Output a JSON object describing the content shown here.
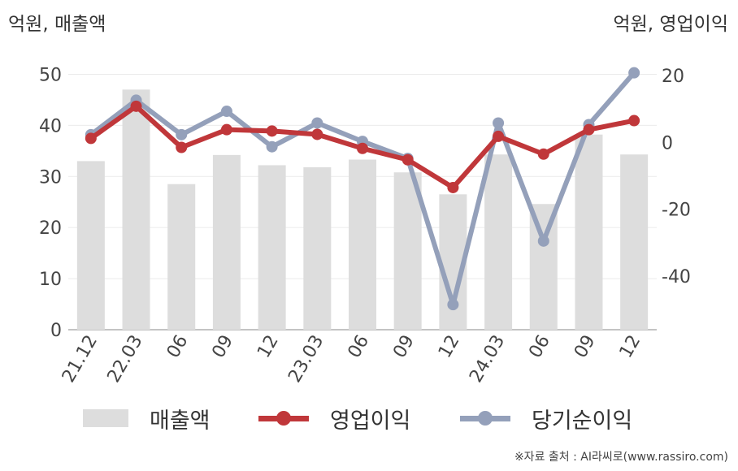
{
  "chart_data": {
    "type": "bar+line",
    "categories": [
      "21.12",
      "22.03",
      "06",
      "09",
      "12",
      "23.03",
      "06",
      "09",
      "12",
      "24.03",
      "06",
      "09",
      "12"
    ],
    "left_axis": {
      "label": "억원, 매출액",
      "ylim": [
        0,
        55
      ],
      "ticks": [
        0,
        10,
        20,
        30,
        40,
        50
      ]
    },
    "right_axis": {
      "label": "억원, 영업이익",
      "ylim": [
        -56,
        28
      ],
      "ticks": [
        -40,
        -20,
        0,
        20
      ]
    },
    "series": [
      {
        "name": "매출액",
        "type": "bar",
        "axis": "left",
        "color": "#dddddd",
        "values": [
          33,
          47,
          28.5,
          34.2,
          32.2,
          31.8,
          33.3,
          30.8,
          26.5,
          34.3,
          24.6,
          38.2,
          34.3
        ]
      },
      {
        "name": "영업이익",
        "type": "line",
        "axis": "right",
        "color": "#c0373a",
        "values": [
          1.2,
          10.8,
          -1.5,
          3.8,
          3.4,
          2.4,
          -1.8,
          -5.2,
          -13.5,
          1.8,
          -3.5,
          3.8,
          6.5
        ]
      },
      {
        "name": "당기순이익",
        "type": "line",
        "axis": "right",
        "color": "#94a0ba",
        "values": [
          2.3,
          12.6,
          2.3,
          9.3,
          -1.3,
          5.8,
          0.3,
          -4.8,
          -48.5,
          5.8,
          -29.5,
          5.3,
          20.8
        ]
      }
    ],
    "grid": true,
    "legend": "bottom"
  },
  "units": {
    "left": "억원, 매출액",
    "right": "억원, 영업이익"
  },
  "legend": {
    "revenue": "매출액",
    "operating": "영업이익",
    "net": "당기순이익"
  },
  "source": "※자료 출처 : AI라씨로(www.rassiro.com)"
}
